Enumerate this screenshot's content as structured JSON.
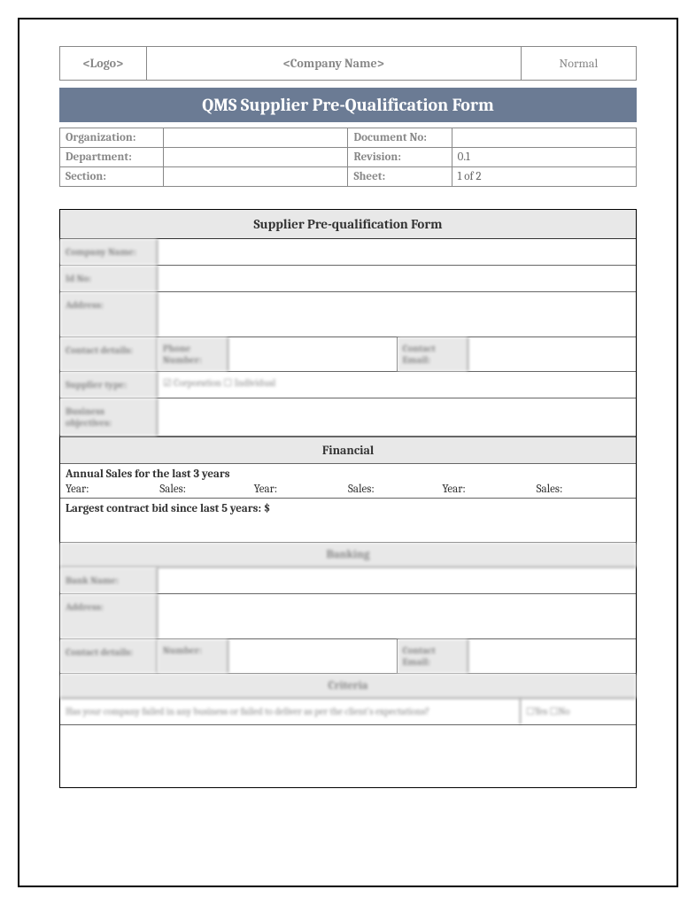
{
  "header": {
    "logo": "<Logo>",
    "company": "<Company Name>",
    "status": "Normal"
  },
  "title": "QMS Supplier Pre-Qualification Form",
  "meta": {
    "organization_label": "Organization:",
    "organization_value": "",
    "document_no_label": "Document No:",
    "document_no_value": "",
    "department_label": "Department:",
    "department_value": "",
    "revision_label": "Revision:",
    "revision_value": "0.1",
    "section_label": "Section:",
    "section_value": "",
    "sheet_label": "Sheet:",
    "sheet_value": "1 of 2"
  },
  "form": {
    "main_header": "Supplier Pre-qualification Form",
    "company_name_label": "Company Name:",
    "id_no_label": "Id No:",
    "address_label": "Address:",
    "contact_details_label": "Contact details:",
    "phone_number_label": "Phone Number:",
    "contact_email_label": "Contact Email:",
    "supplier_type_label": "Supplier type:",
    "supplier_type_value": "☑ Corporation ☐ Individual",
    "business_objectives_label": "Business objectives:",
    "financial_header": "Financial",
    "annual_sales_label": "Annual Sales for the last 3 years",
    "year_label": "Year:",
    "sales_label": "Sales:",
    "contract_bid_label": "Largest contract bid since last 5 years: $",
    "banking_header": "Banking",
    "bank_name_label": "Bank Name:",
    "bank_address_label": "Address:",
    "bank_contact_label": "Contact details:",
    "bank_number_label": "Number:",
    "bank_email_label": "Contact Email:",
    "criteria_header": "Criteria",
    "criteria_q1": "Has your company failed in any business or failed to deliver as per the client's expectations?",
    "criteria_a1": "☐Yes   ☐No"
  },
  "colors": {
    "title_bg": "#6b7b94",
    "title_text": "#ffffff",
    "section_bg": "#e8e8e8",
    "border": "#666666",
    "muted_text": "#888888",
    "page_border": "#000000"
  }
}
